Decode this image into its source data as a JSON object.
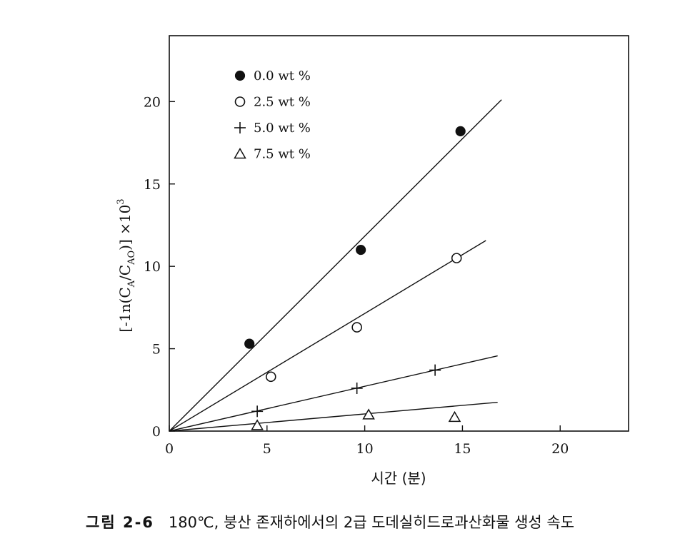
{
  "chart_data": {
    "type": "scatter",
    "xlabel": "시간 (분)",
    "ylabel_parts": [
      "[-1n(C",
      "A",
      "/C",
      "AO",
      ")] ×10",
      "3"
    ],
    "xlim": [
      0,
      23.5
    ],
    "ylim": [
      0,
      24
    ],
    "x_ticks": [
      0,
      5,
      10,
      15,
      20
    ],
    "y_ticks": [
      0,
      5,
      10,
      15,
      20
    ],
    "grid": false,
    "legend_position": "top-left",
    "series": [
      {
        "name": "0.0 wt %",
        "marker": "filled-circle",
        "x": [
          4.1,
          9.8,
          14.9
        ],
        "y": [
          5.3,
          11.0,
          18.2
        ],
        "fit_slope": 1.183,
        "fit_x_end": 17.0
      },
      {
        "name": "2.5 wt %",
        "marker": "open-circle",
        "x": [
          5.2,
          9.6,
          14.7
        ],
        "y": [
          3.3,
          6.3,
          10.5
        ],
        "fit_slope": 0.714,
        "fit_x_end": 16.2
      },
      {
        "name": "5.0 wt %",
        "marker": "plus",
        "x": [
          4.5,
          9.6,
          13.6
        ],
        "y": [
          1.2,
          2.6,
          3.7
        ],
        "fit_slope": 0.272,
        "fit_x_end": 16.8
      },
      {
        "name": "7.5 wt %",
        "marker": "open-triangle",
        "x": [
          4.5,
          10.2,
          14.6
        ],
        "y": [
          0.35,
          1.0,
          0.85
        ],
        "fit_slope": 0.104,
        "fit_x_end": 16.8
      }
    ]
  },
  "caption": {
    "label": "그림 2-6",
    "text": "180℃, 붕산 존재하에서의 2급 도데실히드로과산화물 생성 속도"
  },
  "colors": {
    "ink": "#111111",
    "background": "#ffffff"
  }
}
